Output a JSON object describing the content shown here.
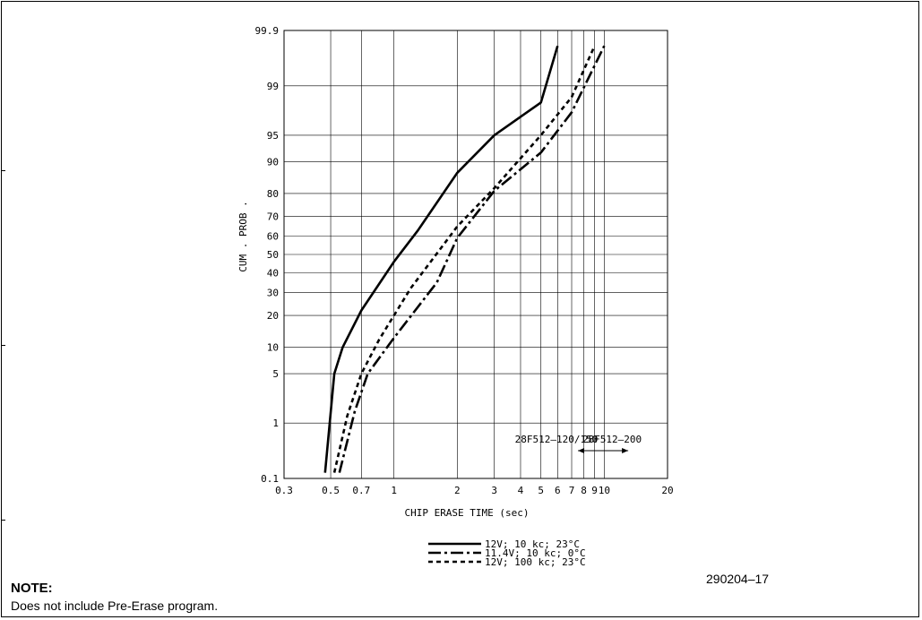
{
  "figure_id": "290204–17",
  "note": {
    "title": "NOTE:",
    "text": "Does not include Pre-Erase program."
  },
  "chart_data": {
    "type": "line",
    "x_scale": "log",
    "y_scale": "probability",
    "xlabel": "CHIP ERASE TIME (sec)",
    "ylabel": "CUM . PROB .",
    "xlim": [
      0.3,
      20
    ],
    "ylim": [
      0.1,
      99.9
    ],
    "x_ticks": [
      {
        "v": 0.3,
        "label": "0.3"
      },
      {
        "v": 0.5,
        "label": "0.5"
      },
      {
        "v": 0.7,
        "label": "0.7"
      },
      {
        "v": 1,
        "label": "1"
      },
      {
        "v": 2,
        "label": "2"
      },
      {
        "v": 3,
        "label": "3"
      },
      {
        "v": 4,
        "label": "4"
      },
      {
        "v": 5,
        "label": "5"
      },
      {
        "v": 6,
        "label": "6"
      },
      {
        "v": 7,
        "label": "7"
      },
      {
        "v": 8,
        "label": "8"
      },
      {
        "v": 9,
        "label": "9"
      },
      {
        "v": 10,
        "label": "10"
      },
      {
        "v": 20,
        "label": "20"
      }
    ],
    "x_gridlines": [
      0.5,
      0.7,
      1,
      2,
      3,
      4,
      5,
      6,
      7,
      8,
      9,
      10
    ],
    "y_ticks": [
      {
        "v": 0.1,
        "label": "0.1"
      },
      {
        "v": 1,
        "label": "1"
      },
      {
        "v": 5,
        "label": "5"
      },
      {
        "v": 10,
        "label": "10"
      },
      {
        "v": 20,
        "label": "20"
      },
      {
        "v": 30,
        "label": "30"
      },
      {
        "v": 40,
        "label": "40"
      },
      {
        "v": 50,
        "label": "50"
      },
      {
        "v": 60,
        "label": "60"
      },
      {
        "v": 70,
        "label": "70"
      },
      {
        "v": 80,
        "label": "80"
      },
      {
        "v": 90,
        "label": "90"
      },
      {
        "v": 95,
        "label": "95"
      },
      {
        "v": 99,
        "label": "99"
      },
      {
        "v": 99.9,
        "label": "99.9"
      }
    ],
    "grid": true,
    "legend_position": "bottom-center",
    "series": [
      {
        "name": "12V; 10 kc; 23°C",
        "style": "solid",
        "points": [
          [
            0.47,
            0.13
          ],
          [
            0.52,
            5
          ],
          [
            0.57,
            10
          ],
          [
            0.7,
            22
          ],
          [
            1,
            46
          ],
          [
            1.3,
            63
          ],
          [
            2,
            87
          ],
          [
            3,
            95
          ],
          [
            5,
            98.2
          ],
          [
            6,
            99.8
          ]
        ]
      },
      {
        "name": "11.4V; 10 kc; 0°C",
        "style": "dash-dot",
        "points": [
          [
            0.55,
            0.13
          ],
          [
            0.65,
            1.5
          ],
          [
            0.75,
            5
          ],
          [
            1,
            12.5
          ],
          [
            1.6,
            35
          ],
          [
            2,
            59
          ],
          [
            3,
            81
          ],
          [
            5,
            92
          ],
          [
            7,
            97.5
          ],
          [
            10,
            99.8
          ]
        ]
      },
      {
        "name": "12V; 100 kc; 23°C",
        "style": "dashed",
        "points": [
          [
            0.52,
            0.13
          ],
          [
            0.6,
            1.3
          ],
          [
            0.7,
            5
          ],
          [
            0.85,
            12
          ],
          [
            1.2,
            32
          ],
          [
            2,
            65
          ],
          [
            3,
            82
          ],
          [
            5,
            95
          ],
          [
            7,
            98.5
          ],
          [
            9,
            99.8
          ]
        ]
      }
    ],
    "annotations": [
      {
        "text": "28F512–120/150",
        "x_start": 0.3,
        "x_end": 7.5
      },
      {
        "text": "28F512–200",
        "x_start": 7.5,
        "x_end": 13
      }
    ]
  }
}
